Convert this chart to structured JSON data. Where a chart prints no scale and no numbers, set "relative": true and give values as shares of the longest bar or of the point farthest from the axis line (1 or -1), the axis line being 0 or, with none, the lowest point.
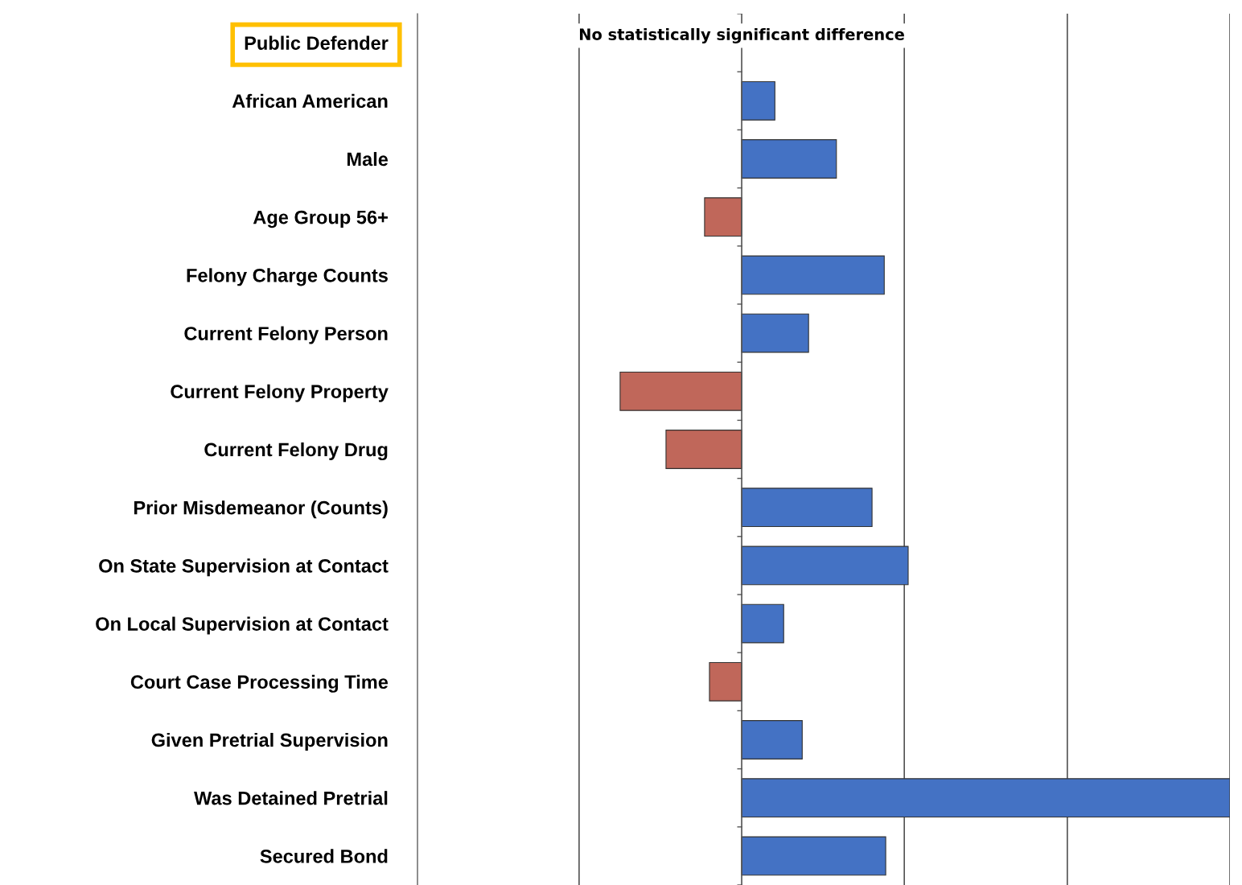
{
  "chart_data": {
    "type": "bar",
    "orientation": "horizontal",
    "relative": true,
    "categories": [
      "Public Defender",
      "African American",
      "Male",
      "Age Group 56+",
      "Felony Charge Counts",
      "Current Felony Person",
      "Current Felony Property",
      "Current Felony Drug",
      "Prior Misdemeanor (Counts)",
      "On State Supervision at Contact",
      "On Local Supervision at Contact",
      "Court Case Processing Time",
      "Given Pretrial Supervision",
      "Was Detained Pretrial",
      "Secured Bond"
    ],
    "values": [
      null,
      0.068,
      0.194,
      -0.076,
      0.292,
      0.137,
      -0.249,
      -0.155,
      0.267,
      0.341,
      0.086,
      -0.066,
      0.124,
      1.0,
      0.295
    ],
    "colors": [
      null,
      "#4472c4",
      "#4472c4",
      "#c0675a",
      "#4472c4",
      "#4472c4",
      "#c0675a",
      "#c0675a",
      "#4472c4",
      "#4472c4",
      "#4472c4",
      "#c0675a",
      "#4472c4",
      "#4472c4",
      "#4472c4"
    ],
    "annotations": [
      "No statistically significant difference"
    ],
    "ref_lines": [
      {
        "axis": "x",
        "value": -0.333,
        "color": "#333333"
      },
      {
        "axis": "x",
        "value": 0.333,
        "color": "#333333"
      },
      {
        "axis": "x",
        "value": 0.667,
        "color": "#333333"
      },
      {
        "axis": "x",
        "value": 1.0,
        "color": "#333333"
      }
    ],
    "tick_labels": "y"
  }
}
